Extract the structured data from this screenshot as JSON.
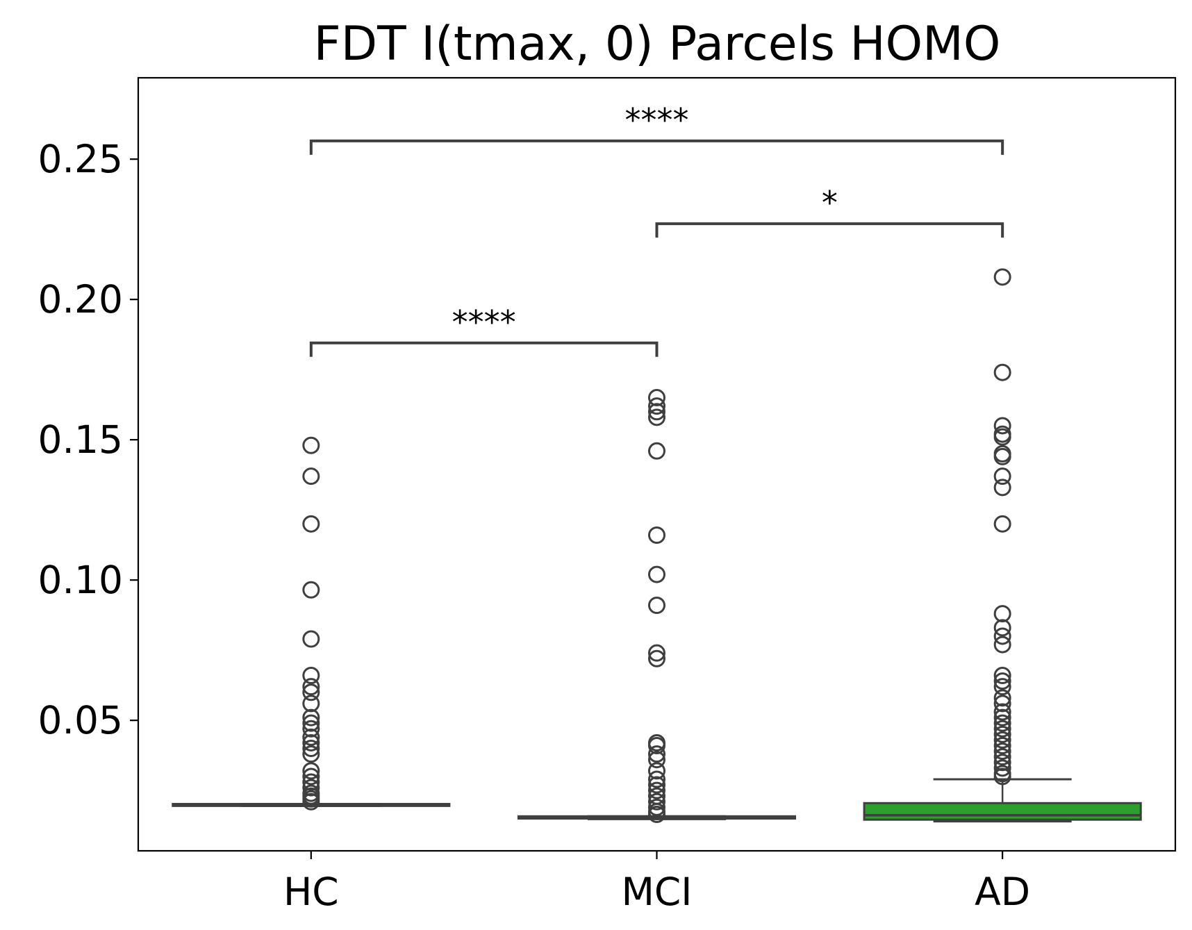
{
  "chart_data": {
    "type": "box",
    "title": "FDT I(tmax, 0) Parcels HOMO",
    "xlabel": "",
    "ylabel": "",
    "ylim": [
      0.0035,
      0.279
    ],
    "yticks": [
      0.05,
      0.1,
      0.15,
      0.2,
      0.25
    ],
    "ytick_labels": [
      "0.05",
      "0.10",
      "0.15",
      "0.20",
      "0.25"
    ],
    "grid": false,
    "legend": "none",
    "categories": [
      "HC",
      "MCI",
      "AD"
    ],
    "colors": {
      "HC": "#1f77b4",
      "MCI": "#ff7f0e",
      "AD": "#2ca02c",
      "edge": "#3f3f3f"
    },
    "boxes": [
      {
        "category": "HC",
        "whisker_low": 0.0195,
        "q1": 0.0195,
        "median": 0.0198,
        "q3": 0.0202,
        "whisker_high": 0.0202,
        "outliers": [
          0.148,
          0.137,
          0.12,
          0.0965,
          0.079,
          0.066,
          0.062,
          0.06,
          0.056,
          0.051,
          0.049,
          0.047,
          0.044,
          0.042,
          0.04,
          0.038,
          0.032,
          0.03,
          0.028,
          0.026,
          0.024,
          0.023,
          0.022,
          0.021
        ]
      },
      {
        "category": "MCI",
        "whisker_low": 0.0148,
        "q1": 0.015,
        "median": 0.0152,
        "q3": 0.0158,
        "whisker_high": 0.0158,
        "outliers": [
          0.165,
          0.162,
          0.16,
          0.158,
          0.146,
          0.116,
          0.102,
          0.091,
          0.074,
          0.072,
          0.042,
          0.041,
          0.038,
          0.036,
          0.032,
          0.029,
          0.027,
          0.025,
          0.023,
          0.021,
          0.019,
          0.0175,
          0.0165
        ]
      },
      {
        "category": "AD",
        "whisker_low": 0.014,
        "q1": 0.0146,
        "median": 0.0162,
        "q3": 0.0205,
        "whisker_high": 0.029,
        "outliers": [
          0.208,
          0.174,
          0.155,
          0.152,
          0.151,
          0.145,
          0.144,
          0.137,
          0.133,
          0.12,
          0.088,
          0.083,
          0.08,
          0.077,
          0.066,
          0.064,
          0.062,
          0.058,
          0.056,
          0.053,
          0.051,
          0.049,
          0.047,
          0.045,
          0.043,
          0.041,
          0.039,
          0.037,
          0.035,
          0.033,
          0.031,
          0.03
        ]
      }
    ],
    "annotations": [
      {
        "from": "HC",
        "to": "MCI",
        "text": "****",
        "y": 0.1845
      },
      {
        "from": "MCI",
        "to": "AD",
        "text": "*",
        "y": 0.227
      },
      {
        "from": "HC",
        "to": "AD",
        "text": "****",
        "y": 0.2565
      }
    ]
  }
}
